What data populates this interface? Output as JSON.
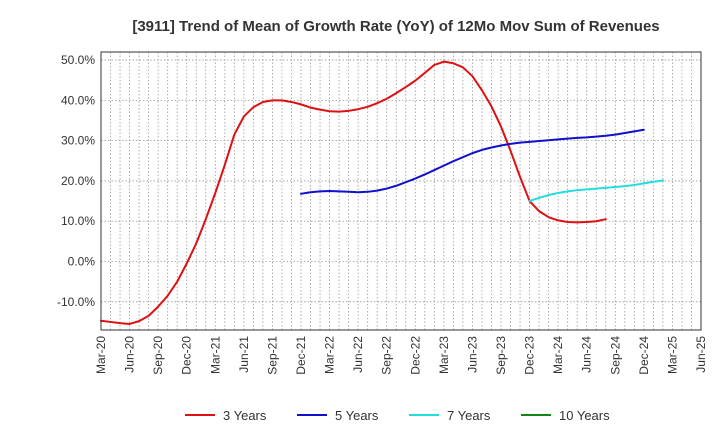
{
  "chart_data": {
    "type": "line",
    "title": "[3911]  Trend of Mean of Growth Rate (YoY) of 12Mo Mov Sum of Revenues",
    "xlabel": "",
    "ylabel": "",
    "ylim": [
      -17,
      52
    ],
    "yticks": [
      50,
      40,
      30,
      20,
      10,
      0,
      -10
    ],
    "ytick_labels": [
      "50.0%",
      "40.0%",
      "30.0%",
      "20.0%",
      "10.0%",
      "0.0%",
      "-10.0%"
    ],
    "x_start": "Mar-20",
    "x_end": "Jun-25",
    "x_tick_labels": [
      "Mar-20",
      "Jun-20",
      "Sep-20",
      "Dec-20",
      "Mar-21",
      "Jun-21",
      "Sep-21",
      "Dec-21",
      "Mar-22",
      "Jun-22",
      "Sep-22",
      "Dec-22",
      "Mar-23",
      "Jun-23",
      "Sep-23",
      "Dec-23",
      "Mar-24",
      "Jun-24",
      "Sep-24",
      "Dec-24",
      "Mar-25",
      "Jun-25"
    ],
    "grid": true,
    "legend_position": "bottom",
    "series": [
      {
        "name": "3 Years",
        "color": "#dd1111",
        "start_month_index": 0,
        "values": [
          -14.7,
          -15.0,
          -15.3,
          -15.5,
          -14.8,
          -13.5,
          -11.2,
          -8.5,
          -5.0,
          -0.5,
          4.5,
          10.5,
          17.0,
          24.0,
          31.5,
          36.0,
          38.3,
          39.6,
          40.0,
          40.0,
          39.6,
          39.0,
          38.2,
          37.7,
          37.3,
          37.2,
          37.4,
          37.8,
          38.4,
          39.3,
          40.4,
          41.8,
          43.3,
          44.9,
          46.8,
          48.8,
          49.6,
          49.2,
          48.2,
          46.0,
          42.5,
          38.5,
          33.5,
          27.5,
          21.0,
          15.0,
          12.5,
          11.0,
          10.2,
          9.8,
          9.7,
          9.8,
          10.0,
          10.5
        ]
      },
      {
        "name": "5 Years",
        "color": "#1111cc",
        "start_month_index": 21,
        "values": [
          16.8,
          17.2,
          17.4,
          17.5,
          17.4,
          17.3,
          17.2,
          17.3,
          17.6,
          18.1,
          18.8,
          19.7,
          20.6,
          21.6,
          22.7,
          23.8,
          24.9,
          25.9,
          26.9,
          27.7,
          28.3,
          28.8,
          29.2,
          29.5,
          29.7,
          29.9,
          30.1,
          30.3,
          30.5,
          30.7,
          30.8,
          31.0,
          31.2,
          31.5,
          31.9,
          32.3,
          32.7
        ]
      },
      {
        "name": "7 Years",
        "color": "#22dddd",
        "start_month_index": 45,
        "values": [
          15.0,
          15.8,
          16.5,
          17.0,
          17.4,
          17.7,
          17.9,
          18.1,
          18.3,
          18.5,
          18.7,
          19.0,
          19.4,
          19.8,
          20.1
        ]
      },
      {
        "name": "10 Years",
        "color": "#118811",
        "start_month_index": 0,
        "values": []
      }
    ]
  }
}
